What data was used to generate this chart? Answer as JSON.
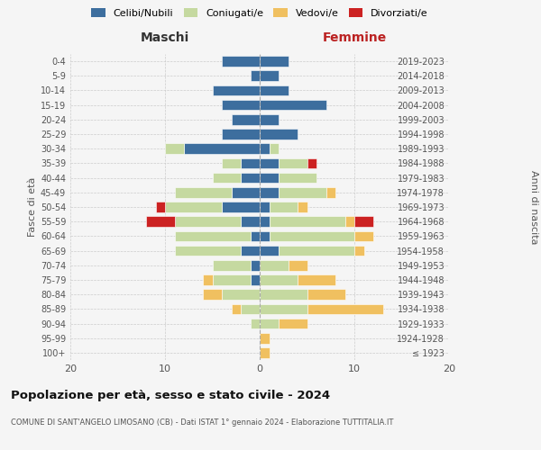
{
  "age_groups": [
    "100+",
    "95-99",
    "90-94",
    "85-89",
    "80-84",
    "75-79",
    "70-74",
    "65-69",
    "60-64",
    "55-59",
    "50-54",
    "45-49",
    "40-44",
    "35-39",
    "30-34",
    "25-29",
    "20-24",
    "15-19",
    "10-14",
    "5-9",
    "0-4"
  ],
  "birth_years": [
    "≤ 1923",
    "1924-1928",
    "1929-1933",
    "1934-1938",
    "1939-1943",
    "1944-1948",
    "1949-1953",
    "1954-1958",
    "1959-1963",
    "1964-1968",
    "1969-1973",
    "1974-1978",
    "1979-1983",
    "1984-1988",
    "1989-1993",
    "1994-1998",
    "1999-2003",
    "2004-2008",
    "2009-2013",
    "2014-2018",
    "2019-2023"
  ],
  "colors": {
    "celibi": "#3d6e9e",
    "coniugati": "#c5d9a0",
    "vedovi": "#f0c060",
    "divorziati": "#cc2222"
  },
  "maschi": {
    "celibi": [
      0,
      0,
      0,
      0,
      0,
      1,
      1,
      2,
      1,
      2,
      4,
      3,
      2,
      2,
      8,
      4,
      3,
      4,
      5,
      1,
      4
    ],
    "coniugati": [
      0,
      0,
      1,
      2,
      4,
      4,
      4,
      7,
      8,
      7,
      6,
      6,
      3,
      2,
      2,
      0,
      0,
      0,
      0,
      0,
      0
    ],
    "vedovi": [
      0,
      0,
      0,
      1,
      2,
      1,
      0,
      0,
      0,
      0,
      0,
      0,
      0,
      0,
      0,
      0,
      0,
      0,
      0,
      0,
      0
    ],
    "divorziati": [
      0,
      0,
      0,
      0,
      0,
      0,
      0,
      0,
      0,
      3,
      1,
      0,
      0,
      0,
      0,
      0,
      0,
      0,
      0,
      0,
      0
    ]
  },
  "femmine": {
    "celibi": [
      0,
      0,
      0,
      0,
      0,
      0,
      0,
      2,
      1,
      1,
      1,
      2,
      2,
      2,
      1,
      4,
      2,
      7,
      3,
      2,
      3
    ],
    "coniugati": [
      0,
      0,
      2,
      5,
      5,
      4,
      3,
      8,
      9,
      8,
      3,
      5,
      4,
      3,
      1,
      0,
      0,
      0,
      0,
      0,
      0
    ],
    "vedovi": [
      1,
      1,
      3,
      8,
      4,
      4,
      2,
      1,
      2,
      1,
      1,
      1,
      0,
      0,
      0,
      0,
      0,
      0,
      0,
      0,
      0
    ],
    "divorziati": [
      0,
      0,
      0,
      0,
      0,
      0,
      0,
      0,
      0,
      2,
      0,
      0,
      0,
      1,
      0,
      0,
      0,
      0,
      0,
      0,
      0
    ]
  },
  "xlim": 20,
  "title": "Popolazione per età, sesso e stato civile - 2024",
  "subtitle": "COMUNE DI SANT'ANGELO LIMOSANO (CB) - Dati ISTAT 1° gennaio 2024 - Elaborazione TUTTITALIA.IT",
  "ylabel_left": "Fasce di età",
  "ylabel_right": "Anni di nascita",
  "xlabel_left": "Maschi",
  "xlabel_right": "Femmine",
  "bg_color": "#f5f5f5",
  "legend_labels": [
    "Celibi/Nubili",
    "Coniugati/e",
    "Vedovi/e",
    "Divorziati/e"
  ]
}
